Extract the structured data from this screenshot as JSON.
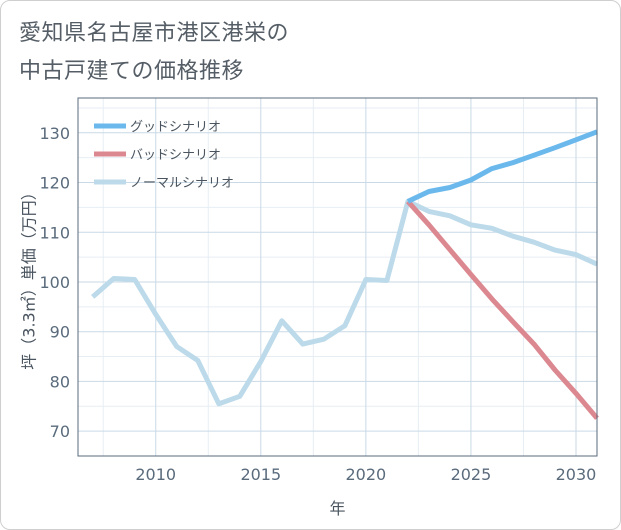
{
  "chart_data": {
    "type": "line",
    "title_lines": [
      "愛知県名古屋市港区港栄の",
      "中古戸建ての価格推移"
    ],
    "xlabel": "年",
    "ylabel": "坪（3.3㎡）単価（万円）",
    "xlim": [
      2006.3,
      2031
    ],
    "ylim": [
      65,
      137
    ],
    "x_ticks": [
      2010,
      2015,
      2020,
      2025,
      2030
    ],
    "y_ticks": [
      70,
      80,
      90,
      100,
      110,
      120,
      130
    ],
    "legend_position": "top-left",
    "series": [
      {
        "name": "グッドシナリオ",
        "color": "#6bb9ec",
        "width": 5,
        "points": [
          [
            2022,
            116.2
          ],
          [
            2023,
            118.2
          ],
          [
            2024,
            119.0
          ],
          [
            2025,
            120.5
          ],
          [
            2026,
            122.8
          ],
          [
            2027,
            124.0
          ],
          [
            2028,
            125.5
          ],
          [
            2029,
            127.0
          ],
          [
            2030,
            128.6
          ],
          [
            2031,
            130.2
          ]
        ]
      },
      {
        "name": "バッドシナリオ",
        "color": "#dc8890",
        "width": 5,
        "points": [
          [
            2022,
            116.2
          ],
          [
            2023,
            111.5
          ],
          [
            2024,
            106.5
          ],
          [
            2025,
            101.5
          ],
          [
            2026,
            96.6
          ],
          [
            2027,
            92.0
          ],
          [
            2028,
            87.5
          ],
          [
            2029,
            82.3
          ],
          [
            2030,
            77.6
          ],
          [
            2031,
            72.6
          ]
        ]
      },
      {
        "name": "ノーマルシナリオ",
        "color": "#bcdaea",
        "width": 5,
        "points": [
          [
            2007,
            97.0
          ],
          [
            2008,
            100.7
          ],
          [
            2009,
            100.5
          ],
          [
            2010,
            93.5
          ],
          [
            2011,
            87.0
          ],
          [
            2012,
            84.2
          ],
          [
            2013,
            75.5
          ],
          [
            2014,
            77.0
          ],
          [
            2015,
            84.0
          ],
          [
            2016,
            92.2
          ],
          [
            2017,
            87.5
          ],
          [
            2018,
            88.5
          ],
          [
            2019,
            91.2
          ],
          [
            2020,
            100.5
          ],
          [
            2021,
            100.3
          ],
          [
            2022,
            116.2
          ],
          [
            2023,
            114.2
          ],
          [
            2024,
            113.3
          ],
          [
            2025,
            111.5
          ],
          [
            2026,
            110.8
          ],
          [
            2027,
            109.2
          ],
          [
            2028,
            108.0
          ],
          [
            2029,
            106.4
          ],
          [
            2030,
            105.5
          ],
          [
            2031,
            103.6
          ]
        ]
      }
    ]
  }
}
